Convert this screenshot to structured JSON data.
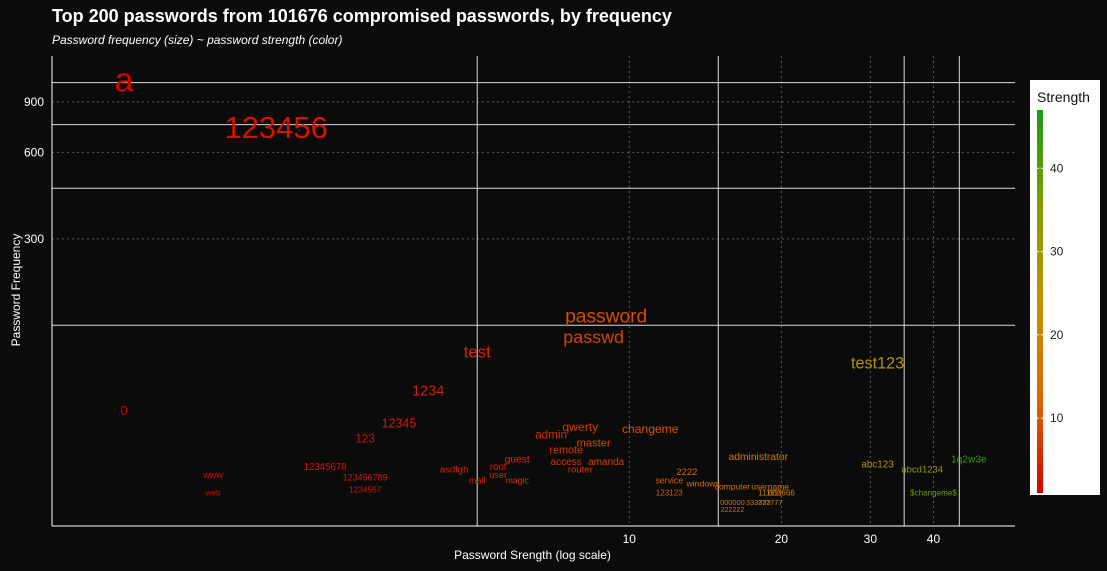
{
  "chart_data": {
    "type": "scatter",
    "title": "Top 200 passwords from 101676 compromised passwords, by frequency",
    "subtitle": "Password frequency (size) ~ password strength (color)",
    "xlabel": "Password Srength (log scale)",
    "ylabel": "Password Frequency",
    "x_scale": "log",
    "y_scale": "log",
    "x_ticks": [
      10,
      20,
      30,
      40
    ],
    "y_ticks": [
      300,
      600,
      900
    ],
    "legend": {
      "title": "Strength",
      "ticks": [
        10,
        20,
        30,
        40
      ],
      "range": [
        1,
        47
      ],
      "colors": [
        "#d40000",
        "#d96a00",
        "#c79000",
        "#7f9e00",
        "#1a9a1a"
      ],
      "placement": "right"
    },
    "points": [
      {
        "label": "a",
        "x": 1,
        "y": 1050,
        "strength": 1
      },
      {
        "label": "123456",
        "x": 2,
        "y": 720,
        "strength": 3
      },
      {
        "label": "password",
        "x": 9,
        "y": 160,
        "strength": 9
      },
      {
        "label": "passwd",
        "x": 8.5,
        "y": 135,
        "strength": 8
      },
      {
        "label": "test",
        "x": 5,
        "y": 120,
        "strength": 5
      },
      {
        "label": "test123",
        "x": 31,
        "y": 110,
        "strength": 28
      },
      {
        "label": "1234",
        "x": 4,
        "y": 88,
        "strength": 4
      },
      {
        "label": "0",
        "x": 1,
        "y": 75,
        "strength": 1
      },
      {
        "label": "12345",
        "x": 3.5,
        "y": 68,
        "strength": 4
      },
      {
        "label": "123",
        "x": 3,
        "y": 60,
        "strength": 3
      },
      {
        "label": "qwerty",
        "x": 8,
        "y": 66,
        "strength": 7
      },
      {
        "label": "admin",
        "x": 7,
        "y": 62,
        "strength": 6
      },
      {
        "label": "changeme",
        "x": 11,
        "y": 65,
        "strength": 10
      },
      {
        "label": "administrator",
        "x": 18,
        "y": 52,
        "strength": 16
      },
      {
        "label": "abc123",
        "x": 31,
        "y": 49,
        "strength": 28
      },
      {
        "label": "abcd1234",
        "x": 38,
        "y": 47,
        "strength": 33
      },
      {
        "label": "1q2w3e",
        "x": 47,
        "y": 51,
        "strength": 44
      },
      {
        "label": "$changeme$",
        "x": 40,
        "y": 39,
        "strength": 37
      },
      {
        "label": "12345678",
        "x": 2.5,
        "y": 48,
        "strength": 3
      },
      {
        "label": "asdfgh",
        "x": 4.5,
        "y": 47,
        "strength": 5
      },
      {
        "label": "root",
        "x": 5.5,
        "y": 48,
        "strength": 5
      },
      {
        "label": "user",
        "x": 5.5,
        "y": 45,
        "strength": 5
      },
      {
        "label": "guest",
        "x": 6,
        "y": 51,
        "strength": 6
      },
      {
        "label": "access",
        "x": 7.5,
        "y": 50,
        "strength": 7
      },
      {
        "label": "amanda",
        "x": 9,
        "y": 50,
        "strength": 8
      },
      {
        "label": "master",
        "x": 8.5,
        "y": 58,
        "strength": 8
      },
      {
        "label": "remote",
        "x": 7.5,
        "y": 55,
        "strength": 7
      },
      {
        "label": "router",
        "x": 8,
        "y": 47,
        "strength": 7
      },
      {
        "label": "www",
        "x": 1.5,
        "y": 45,
        "strength": 2
      },
      {
        "label": "123456789",
        "x": 3,
        "y": 44,
        "strength": 3
      },
      {
        "label": "mail",
        "x": 5,
        "y": 43,
        "strength": 5
      },
      {
        "label": "magic",
        "x": 6,
        "y": 43,
        "strength": 6
      },
      {
        "label": "1234567",
        "x": 3,
        "y": 40,
        "strength": 3
      },
      {
        "label": "web",
        "x": 1.5,
        "y": 39,
        "strength": 2
      },
      {
        "label": "123123",
        "x": 12,
        "y": 39,
        "strength": 11
      },
      {
        "label": "2222",
        "x": 13,
        "y": 46,
        "strength": 12
      },
      {
        "label": "service",
        "x": 12,
        "y": 43,
        "strength": 11
      },
      {
        "label": "windows",
        "x": 14,
        "y": 42,
        "strength": 13
      },
      {
        "label": "computer",
        "x": 16,
        "y": 41,
        "strength": 15
      },
      {
        "label": "username",
        "x": 19,
        "y": 41,
        "strength": 17
      },
      {
        "label": "111111",
        "x": 19,
        "y": 39,
        "strength": 17
      },
      {
        "label": "666666",
        "x": 20,
        "y": 39,
        "strength": 18
      },
      {
        "label": "777777",
        "x": 19,
        "y": 36,
        "strength": 17
      },
      {
        "label": "222222",
        "x": 16,
        "y": 34,
        "strength": 15
      },
      {
        "label": "000000",
        "x": 16,
        "y": 36,
        "strength": 15
      },
      {
        "label": "333333",
        "x": 18,
        "y": 36,
        "strength": 16
      }
    ]
  }
}
